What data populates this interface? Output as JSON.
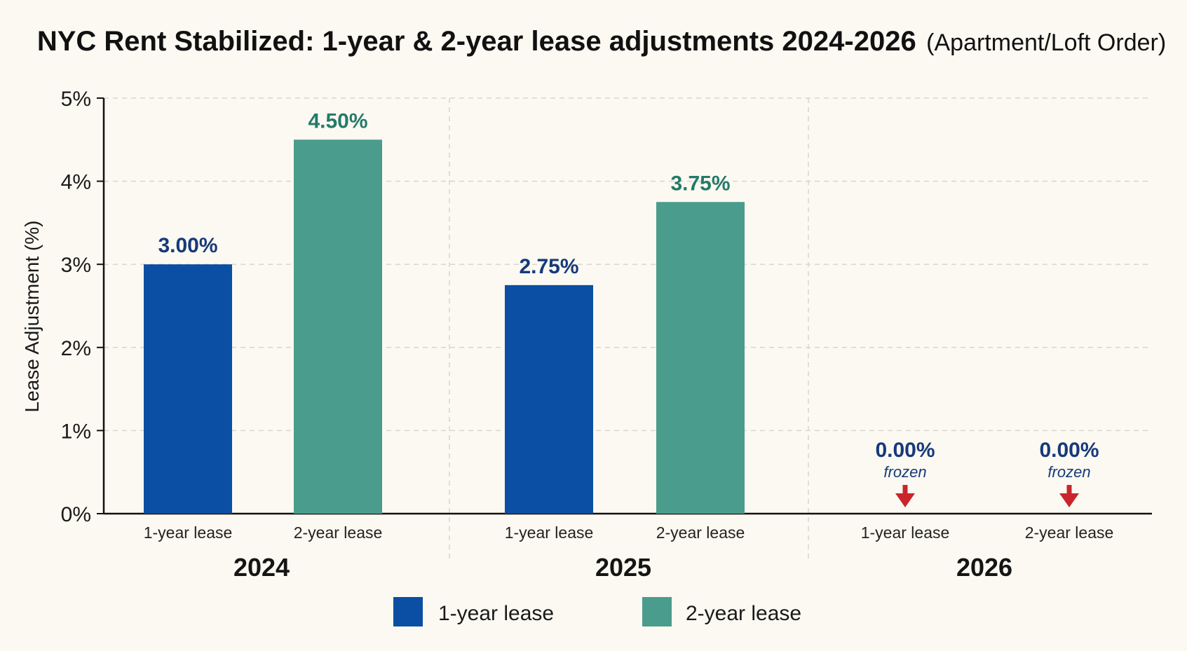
{
  "chart_data": {
    "type": "bar",
    "title": "NYC Rent Stabilized: 1-year & 2-year lease adjustments 2024-2026",
    "subtitle": "(Apartment/Loft Order)",
    "xlabel": "",
    "ylabel": "Lease Adjustment (%)",
    "ylim": [
      0,
      5
    ],
    "yticks": [
      {
        "value": 0,
        "label": "0%"
      },
      {
        "value": 1,
        "label": "1%"
      },
      {
        "value": 2,
        "label": "2%"
      },
      {
        "value": 3,
        "label": "3%"
      },
      {
        "value": 4,
        "label": "4%"
      },
      {
        "value": 5,
        "label": "5%"
      }
    ],
    "grid": true,
    "legend_position": "bottom-center",
    "categories": [
      "2024",
      "2025",
      "2026"
    ],
    "subcategories": [
      "1-year lease",
      "2-year lease"
    ],
    "series": [
      {
        "name": "1-year lease",
        "color": "#0a4fa3",
        "label_color": "#17397a",
        "values": [
          3.0,
          2.75,
          0.0
        ],
        "labels": [
          "3.00%",
          "2.75%",
          "0.00%"
        ]
      },
      {
        "name": "2-year lease",
        "color": "#4a9c8c",
        "label_color": "#257a6a",
        "values": [
          4.5,
          3.75,
          0.0
        ],
        "labels": [
          "4.50%",
          "3.75%",
          "0.00%"
        ]
      }
    ],
    "annotations": [
      {
        "group": "2026",
        "series": "1-year lease",
        "text": "frozen",
        "icon": "down-arrow-icon",
        "color": "#17397a",
        "arrow_color": "#c8262c"
      },
      {
        "group": "2026",
        "series": "2-year lease",
        "text": "frozen",
        "icon": "down-arrow-icon",
        "color": "#17397a",
        "arrow_color": "#c8262c"
      }
    ]
  }
}
